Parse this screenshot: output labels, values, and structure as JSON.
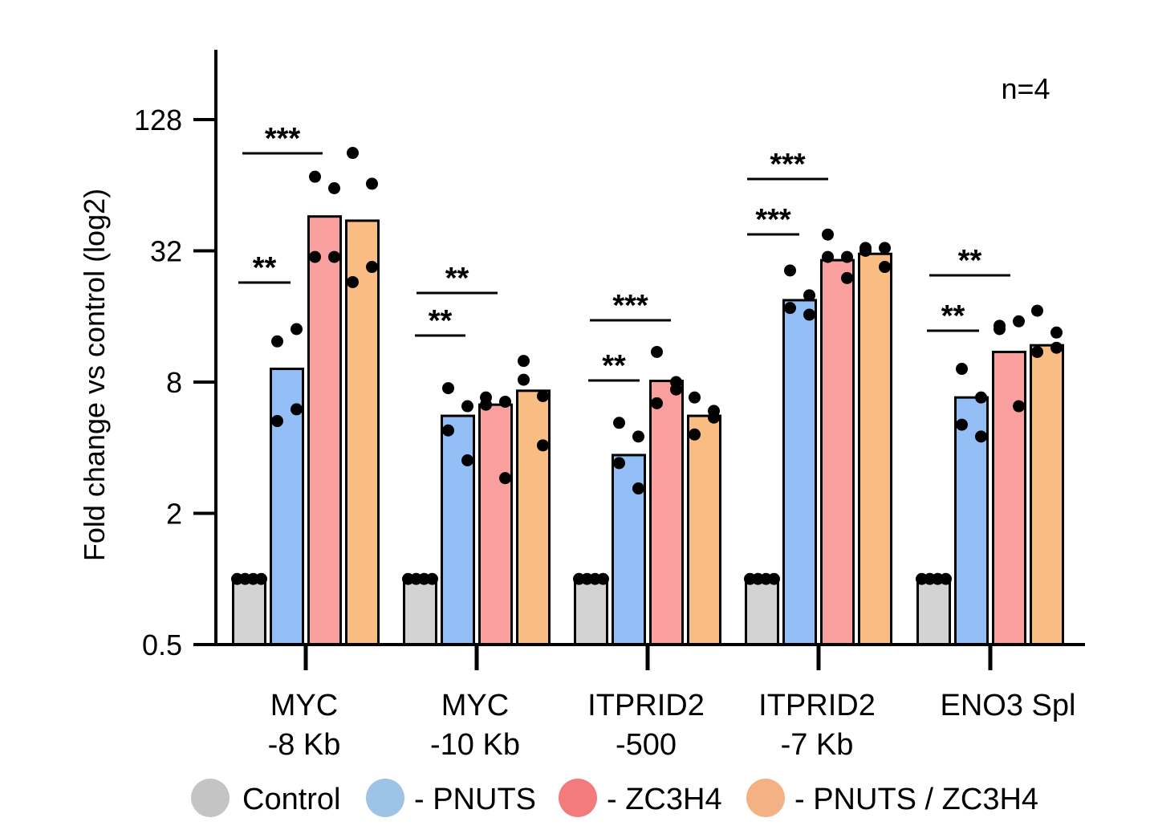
{
  "chart_data": {
    "type": "bar",
    "yscale": "log2",
    "ylabel": "Fold change vs control (log2)",
    "ylim": [
      0.5,
      200
    ],
    "yticks": [
      0.5,
      2,
      8,
      32,
      128
    ],
    "ytick_labels": [
      "0.5",
      "2",
      "8",
      "32",
      "128"
    ],
    "annotation": "n=4",
    "categories": [
      {
        "line1": "MYC",
        "line2": "-8 Kb"
      },
      {
        "line1": "MYC",
        "line2": "-10 Kb"
      },
      {
        "line1": "ITPRID2",
        "line2": "-500"
      },
      {
        "line1": "ITPRID2",
        "line2": "-7 Kb"
      },
      {
        "line1": "ENO3 Spl",
        "line2": ""
      }
    ],
    "series": [
      {
        "name": "Control",
        "color": "#d3d3d3",
        "legend_color": "#c4c4c4",
        "values": [
          1,
          1,
          1,
          1,
          1
        ],
        "points": [
          [
            1,
            1,
            1,
            1
          ],
          [
            1,
            1,
            1,
            1
          ],
          [
            1,
            1,
            1,
            1
          ],
          [
            1,
            1,
            1,
            1
          ],
          [
            1,
            1,
            1,
            1
          ]
        ]
      },
      {
        "name": "- PNUTS",
        "color": "#94bff6",
        "legend_color": "#9dc3e6",
        "values": [
          9.2,
          5.6,
          3.7,
          19.0,
          6.8
        ],
        "points": [
          [
            12.3,
            14.0,
            5.3,
            6.0
          ],
          [
            7.5,
            6.2,
            4.8,
            3.5
          ],
          [
            5.2,
            4.5,
            3.4,
            2.6
          ],
          [
            26.0,
            20.0,
            17.5,
            16.3
          ],
          [
            9.2,
            6.8,
            5.1,
            4.5
          ]
        ]
      },
      {
        "name": "- ZC3H4",
        "color": "#f9a09f",
        "legend_color": "#f47b7b",
        "values": [
          46,
          6.3,
          8.1,
          29.0,
          11.0
        ],
        "points": [
          [
            70,
            62,
            30,
            30
          ],
          [
            6.8,
            6.5,
            6.3,
            2.9
          ],
          [
            11.0,
            7.4,
            6.4,
            8.0
          ],
          [
            38,
            30,
            30,
            24
          ],
          [
            14.5,
            15.2,
            14.0,
            6.2
          ]
        ]
      },
      {
        "name": "- PNUTS / ZC3H4",
        "color": "#f9bc82",
        "legend_color": "#f4b183",
        "values": [
          44,
          7.3,
          5.6,
          31.0,
          11.8
        ],
        "points": [
          [
            90,
            65,
            23,
            27
          ],
          [
            10.0,
            6.9,
            8.2,
            4.1
          ],
          [
            6.8,
            5.5,
            4.6,
            5.9
          ],
          [
            33,
            33,
            32,
            27
          ],
          [
            17.0,
            13.5,
            11.0,
            11.5
          ]
        ]
      }
    ],
    "significance": [
      {
        "category": 0,
        "series": 1,
        "label": "**"
      },
      {
        "category": 0,
        "series": 2,
        "label": "***"
      },
      {
        "category": 1,
        "series": 1,
        "label": "**"
      },
      {
        "category": 1,
        "series": 2,
        "label": "**"
      },
      {
        "category": 2,
        "series": 1,
        "label": "**"
      },
      {
        "category": 2,
        "series": 2,
        "label": "***"
      },
      {
        "category": 3,
        "series": 1,
        "label": "***"
      },
      {
        "category": 3,
        "series": 2,
        "label": "***"
      },
      {
        "category": 4,
        "series": 1,
        "label": "**"
      },
      {
        "category": 4,
        "series": 2,
        "label": "**"
      }
    ]
  }
}
